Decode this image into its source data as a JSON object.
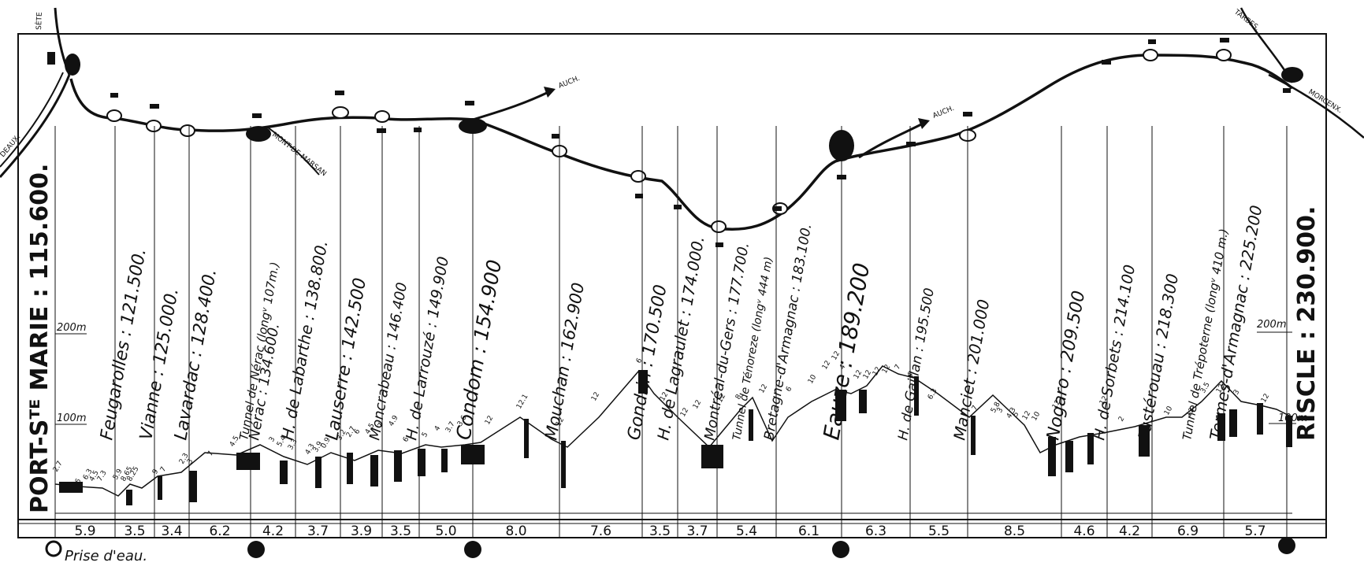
{
  "origin": "PORT-Sᵀᴱ MARIE : 115.600.",
  "terminus": "RISCLE : 230.900.",
  "junctions": {
    "sete": "SÈTE",
    "bordeaux": "DEAUX.",
    "auch_1": "AUCH.",
    "auch_2": "AUCH.",
    "mont_de_marsan": "MONT-DE-MARSAN",
    "tarbes": "TARBES.",
    "morcenx": "MORCENX."
  },
  "stations": [
    {
      "label": "Feugarolles : 121.500."
    },
    {
      "label": "Vianne : 125.000."
    },
    {
      "label": "Lavardac : 128.400."
    },
    {
      "label": "Tunnel de Nérac (longᵛ 107m.)"
    },
    {
      "label": "Nérac : 134.600."
    },
    {
      "label": "H. de Labarthe : 138.800."
    },
    {
      "label": "Lauserre : 142.500"
    },
    {
      "label": "Moncrabeau : 146.400"
    },
    {
      "label": "H. de Larrouzé : 149.900"
    },
    {
      "label": "Condom : 154.900"
    },
    {
      "label": "Mouchan : 162.900"
    },
    {
      "label": "Gondrin : 170.500"
    },
    {
      "label": "H. de Lagraulet : 174.000."
    },
    {
      "label": "Montréal-du-Gers : 177.700."
    },
    {
      "label": "Tunnel de Ténoreze (longᵛ 444 m)"
    },
    {
      "label": "Bretagne-d'Armagnac : 183.100."
    },
    {
      "label": "Eauze : 189.200"
    },
    {
      "label": "H. de Gaillan : 195.500"
    },
    {
      "label": "Manciet : 201.000"
    },
    {
      "label": "Nogaro : 209.500"
    },
    {
      "label": "H. de Sorbets : 214.100"
    },
    {
      "label": "Fustérouau : 218.300"
    },
    {
      "label": "Tunnel de Trépoterne (longᵛ 410 m.)"
    },
    {
      "label": "Termes-d'Armagnac : 225.200"
    }
  ],
  "distances": [
    "5.9",
    "3.5",
    "3.4",
    "6.2",
    "4.2",
    "3.7",
    "3.9",
    "3.5",
    "5.0",
    "8.0",
    "7.6",
    "3.5",
    "3.7",
    "5.4",
    "6.1",
    "6.3",
    "5.5",
    "8.5",
    "4.6",
    "4.2",
    "6.9",
    "5.7"
  ],
  "altitude_marks": {
    "left_200": "200m",
    "left_100": "100m",
    "right_200": "200m",
    "right_100": "100m"
  },
  "legend": {
    "water_intake": "Prise d'eau."
  },
  "gradients": [
    "2.7",
    "6",
    "6.3",
    "4.5",
    "7.3",
    "5.9",
    "8.65",
    "8.25",
    "9",
    "7",
    "2.3",
    "3",
    "7",
    "4.5",
    "3",
    "5.4",
    "3.3",
    "4.3",
    "3.9",
    "0.9",
    "3.2",
    "2.7",
    "6",
    "4.5",
    "7",
    "4.9",
    "6",
    "5",
    "4",
    "3.7",
    "3.6",
    "12",
    "12.1",
    "12",
    "12",
    "6",
    "12",
    "12",
    "12",
    "12",
    "8",
    "12",
    "6",
    "10",
    "12",
    "12",
    "4",
    "12",
    "12",
    "12",
    "12",
    "7",
    "4",
    "6.3",
    "7",
    "5.8",
    "3",
    "4.3",
    "5",
    "12",
    "10",
    "12",
    "2",
    "10",
    "3.5",
    "12",
    "3",
    "12",
    "12",
    "12"
  ]
}
